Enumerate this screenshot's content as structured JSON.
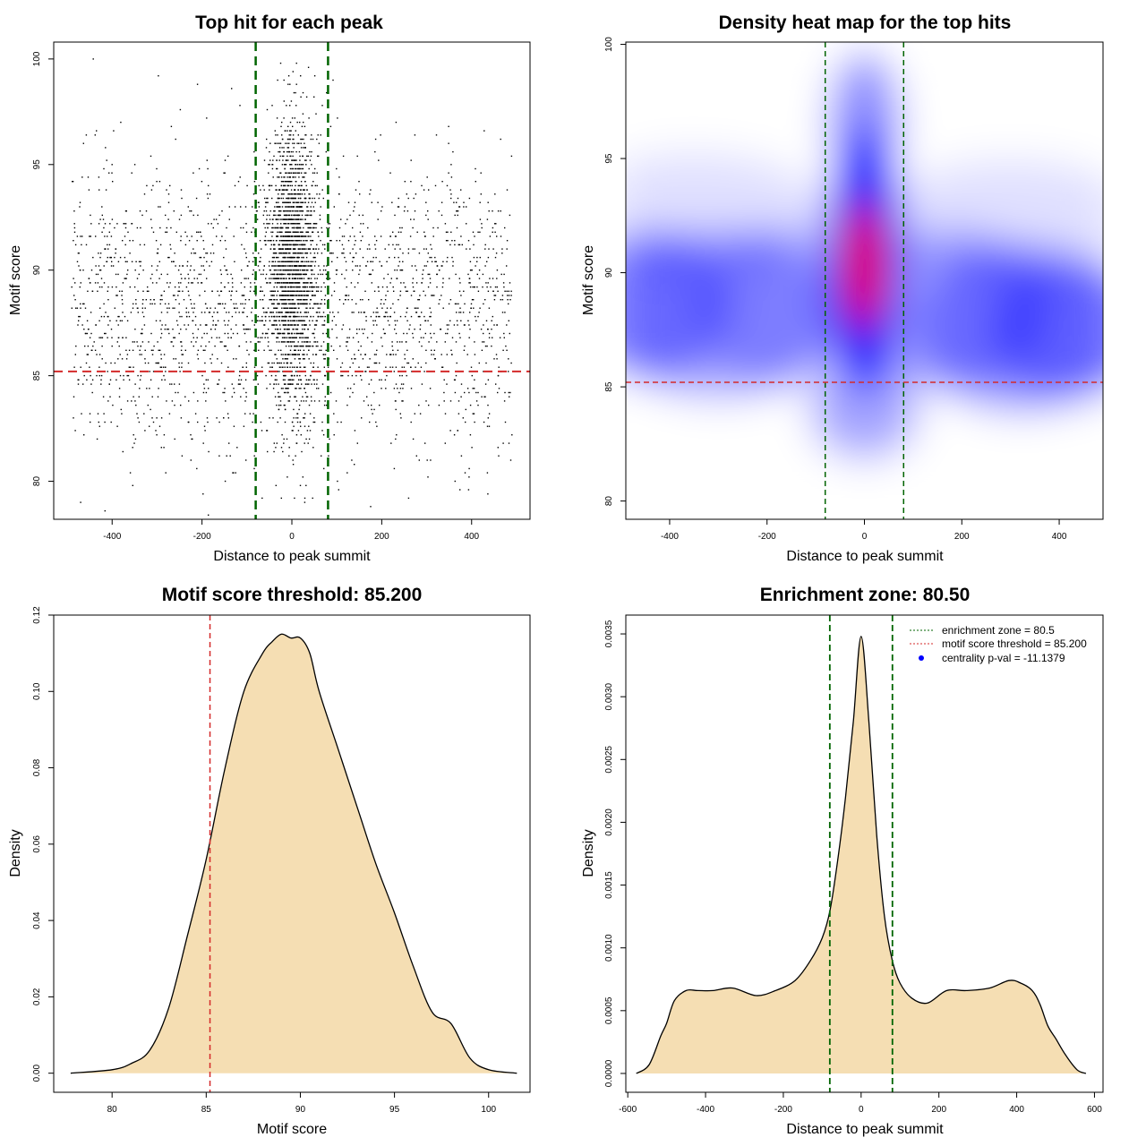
{
  "chart_data": [
    {
      "type": "scatter",
      "title": "Top hit for each peak",
      "xlabel": "Distance to peak summit",
      "ylabel": "Motif score",
      "xlim": [
        -530,
        530
      ],
      "ylim": [
        78.2,
        100.8
      ],
      "xticks": [
        "-400",
        "-200",
        "0",
        "200",
        "400"
      ],
      "xtick_values": [
        -400,
        -200,
        0,
        200,
        400
      ],
      "yticks": [
        "80",
        "85",
        "90",
        "95",
        "100"
      ],
      "ytick_values": [
        80,
        85,
        90,
        95,
        100
      ],
      "enrichment_zone": [
        -80.5,
        80.5
      ],
      "motif_score_threshold": 85.2,
      "background_points": {
        "x_range": [
          -490,
          490
        ],
        "y_mean": 88.3,
        "y_sd": 3.4,
        "count": 2300
      },
      "central_points": {
        "x_mean": 0,
        "x_sd": 28,
        "y_mean": 90.2,
        "y_sd": 3.2,
        "count": 2200
      },
      "colors": {
        "points": "#000000",
        "zone_line": "#006400",
        "threshold_line": "#d42a2a"
      },
      "grid": false
    },
    {
      "type": "heatmap",
      "title": "Density heat map for the top hits",
      "xlabel": "Distance to peak summit",
      "ylabel": "Motif score",
      "xlim": [
        -490,
        490
      ],
      "ylim": [
        79.2,
        100.1
      ],
      "xticks": [
        "-400",
        "-200",
        "0",
        "200",
        "400"
      ],
      "xtick_values": [
        -400,
        -200,
        0,
        200,
        400
      ],
      "yticks": [
        "80",
        "85",
        "90",
        "95",
        "100"
      ],
      "yticks_values": [
        80,
        85,
        90,
        95,
        100
      ],
      "enrichment_zone": [
        -80.5,
        80.5
      ],
      "motif_score_threshold": 85.2,
      "density_peak": {
        "x": 0,
        "y": 90.3
      },
      "colors": {
        "low": "#ffffff",
        "mid": "#0000ff",
        "high": "#ff0000",
        "zone_line": "#006400",
        "threshold_line": "#d42a2a"
      },
      "grid": false
    },
    {
      "type": "area",
      "title": "Motif score threshold: 85.200",
      "xlabel": "Motif score",
      "ylabel": "Density",
      "xlim": [
        76.9,
        102.2
      ],
      "ylim": [
        -0.005,
        0.12
      ],
      "xticks": [
        "80",
        "85",
        "90",
        "95",
        "100"
      ],
      "xtick_values": [
        80,
        85,
        90,
        95,
        100
      ],
      "yticks": [
        "0.00",
        "0.02",
        "0.04",
        "0.06",
        "0.08",
        "0.10",
        "0.12"
      ],
      "ytick_values": [
        0,
        0.02,
        0.04,
        0.06,
        0.08,
        0.1,
        0.12
      ],
      "x": [
        77.8,
        80,
        81,
        82,
        83,
        84,
        85,
        86,
        87,
        88,
        88.5,
        89,
        89.5,
        90,
        90.5,
        91,
        92,
        93,
        94,
        95,
        96,
        97,
        98,
        99,
        100,
        101.5
      ],
      "y": [
        0.0,
        0.0009,
        0.0025,
        0.006,
        0.017,
        0.036,
        0.056,
        0.08,
        0.1,
        0.11,
        0.113,
        0.115,
        0.114,
        0.114,
        0.11,
        0.1,
        0.085,
        0.07,
        0.055,
        0.042,
        0.028,
        0.016,
        0.013,
        0.004,
        0.0009,
        0.0
      ],
      "threshold": 85.2,
      "colors": {
        "fill": "#f5deb3",
        "line": "#000000",
        "threshold_line": "#d42a2a"
      },
      "grid": false
    },
    {
      "type": "area",
      "title": "Enrichment zone: 80.50",
      "xlabel": "Distance to peak summit",
      "ylabel": "Density",
      "xlim": [
        -605,
        622
      ],
      "ylim": [
        -0.00015,
        0.00365
      ],
      "xticks": [
        "-600",
        "-400",
        "-200",
        "0",
        "200",
        "400",
        "600"
      ],
      "xtick_values": [
        -600,
        -400,
        -200,
        0,
        200,
        400,
        600
      ],
      "yticks": [
        "0.0000",
        "0.0005",
        "0.0010",
        "0.0015",
        "0.0020",
        "0.0025",
        "0.0030",
        "0.0035"
      ],
      "ytick_values": [
        0,
        0.0005,
        0.001,
        0.0015,
        0.002,
        0.0025,
        0.003,
        0.0035
      ],
      "x": [
        -578,
        -545,
        -515,
        -500,
        -480,
        -450,
        -420,
        -380,
        -330,
        -270,
        -220,
        -170,
        -130,
        -100,
        -80,
        -60,
        -40,
        -20,
        0,
        20,
        40,
        60,
        80,
        100,
        130,
        170,
        220,
        270,
        330,
        380,
        410,
        440,
        460,
        480,
        500,
        525,
        555,
        578
      ],
      "y": [
        0.0,
        7e-05,
        0.0003,
        0.0004,
        0.00058,
        0.00066,
        0.00066,
        0.00066,
        0.00068,
        0.00062,
        0.00066,
        0.00074,
        0.0009,
        0.00108,
        0.0013,
        0.0017,
        0.0022,
        0.0028,
        0.00348,
        0.0028,
        0.0019,
        0.00125,
        0.0009,
        0.00072,
        0.0006,
        0.00056,
        0.00066,
        0.00066,
        0.00068,
        0.00074,
        0.00072,
        0.00066,
        0.00055,
        0.00038,
        0.00028,
        0.00015,
        3e-05,
        0.0
      ],
      "enrichment_zone": [
        -80.5,
        80.5
      ],
      "legend": {
        "position": "top-right",
        "entries": [
          {
            "label": "enrichment zone = 80.5",
            "style": "dotted-line",
            "color": "#006400"
          },
          {
            "label": "motif score threshold = 85.200",
            "style": "dotted-line",
            "color": "#d42a2a"
          },
          {
            "label": "centrality p-val = -11.1379",
            "style": "point",
            "color": "#0000ff"
          }
        ]
      },
      "colors": {
        "fill": "#f5deb3",
        "line": "#000000",
        "zone_line": "#006400"
      },
      "grid": false
    }
  ]
}
